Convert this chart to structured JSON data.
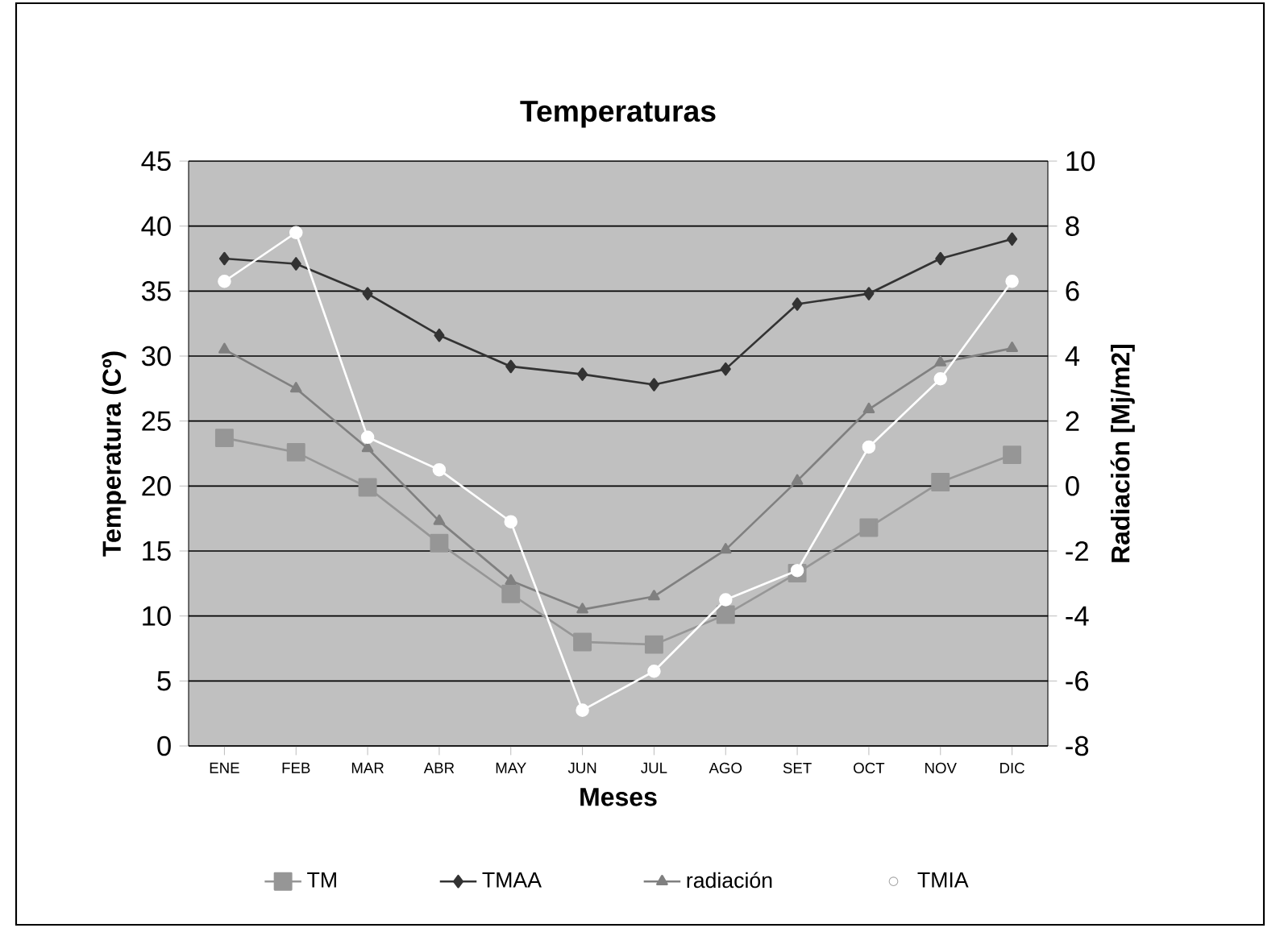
{
  "chart_data": {
    "type": "line",
    "title": "Temperaturas",
    "xlabel": "Meses",
    "ylabel": "Temperatura (Cº)",
    "y2label": "Radiación [Mj/m2]",
    "categories": [
      "ENE",
      "FEB",
      "MAR",
      "ABR",
      "MAY",
      "JUN",
      "JUL",
      "AGO",
      "SET",
      "OCT",
      "NOV",
      "DIC"
    ],
    "series": [
      {
        "name": "TM",
        "color": "#969696",
        "marker": "square",
        "values": [
          23.7,
          22.6,
          19.9,
          15.6,
          11.7,
          8.0,
          7.8,
          10.1,
          13.3,
          16.8,
          20.3,
          22.4
        ]
      },
      {
        "name": "TMAA",
        "color": "#333333",
        "marker": "diamond",
        "values": [
          37.5,
          37.1,
          34.8,
          31.6,
          29.2,
          28.6,
          27.8,
          29.0,
          34.0,
          34.8,
          37.5,
          39.0
        ]
      },
      {
        "name": "radiación",
        "color": "#808080",
        "marker": "triangle",
        "values": [
          30.5,
          27.5,
          22.9,
          17.3,
          12.7,
          10.5,
          11.5,
          15.1,
          20.4,
          25.9,
          29.5,
          30.6
        ]
      },
      {
        "name": "TMIA",
        "color": "#ffffff",
        "marker": "circle",
        "axis": "y2",
        "values": [
          6.3,
          7.8,
          1.5,
          0.5,
          -1.1,
          -6.9,
          -5.7,
          -3.5,
          -2.6,
          1.2,
          3.3,
          6.3
        ]
      }
    ],
    "ylim": [
      0,
      45
    ],
    "yticks": [
      0,
      5,
      10,
      15,
      20,
      25,
      30,
      35,
      40,
      45
    ],
    "y2lim": [
      -8,
      10
    ],
    "y2ticks": [
      -8,
      -6,
      -4,
      -2,
      0,
      2,
      4,
      6,
      8,
      10
    ],
    "grid": "y",
    "legend": "bottom",
    "line_style": "solid"
  }
}
